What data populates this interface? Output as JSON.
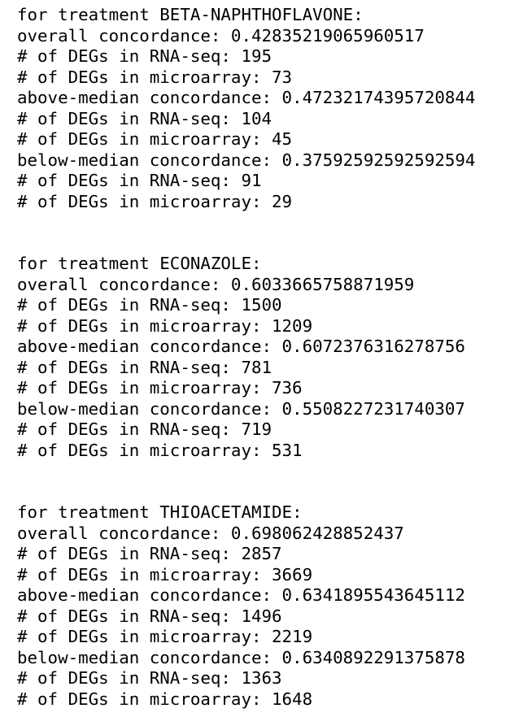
{
  "blocks": [
    {
      "lines": [
        "for treatment BETA-NAPHTHOFLAVONE:",
        "overall concordance: 0.42835219065960517",
        "# of DEGs in RNA-seq: 195",
        "# of DEGs in microarray: 73",
        "above-median concordance: 0.47232174395720844",
        "# of DEGs in RNA-seq: 104",
        "# of DEGs in microarray: 45",
        "below-median concordance: 0.37592592592592594",
        "# of DEGs in RNA-seq: 91",
        "# of DEGs in microarray: 29"
      ]
    },
    {
      "lines": [
        "for treatment ECONAZOLE:",
        "overall concordance: 0.6033665758871959",
        "# of DEGs in RNA-seq: 1500",
        "# of DEGs in microarray: 1209",
        "above-median concordance: 0.6072376316278756",
        "# of DEGs in RNA-seq: 781",
        "# of DEGs in microarray: 736",
        "below-median concordance: 0.5508227231740307",
        "# of DEGs in RNA-seq: 719",
        "# of DEGs in microarray: 531"
      ]
    },
    {
      "lines": [
        "for treatment THIOACETAMIDE:",
        "overall concordance: 0.698062428852437",
        "# of DEGs in RNA-seq: 2857",
        "# of DEGs in microarray: 3669",
        "above-median concordance: 0.6341895543645112",
        "# of DEGs in RNA-seq: 1496",
        "# of DEGs in microarray: 2219",
        "below-median concordance: 0.6340892291375878",
        "# of DEGs in RNA-seq: 1363",
        "# of DEGs in microarray: 1648"
      ]
    }
  ]
}
